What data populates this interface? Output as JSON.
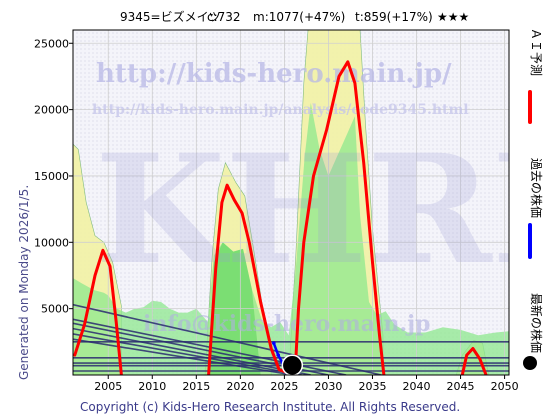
{
  "header": {
    "code_name": "9345=ビズメイツ",
    "current": "c:732",
    "median": "m:1077(+47%)",
    "target": "t:859(+17%)",
    "stars": "★★★"
  },
  "side_note": "Generated on Monday 2026/1/5.",
  "footer": "Copyright (c) Kids-Hero Research Institute. All Rights Reserved.",
  "watermarks": {
    "url": "http://kids-hero.main.jp/",
    "analysis_url": "http://kids-hero.main.jp/analysis/code9345.html",
    "brand": "KHRI",
    "email": "info@kids-hero.main.jp"
  },
  "legend": [
    {
      "label": "ＡＩ予測",
      "color": "#ff0000"
    },
    {
      "label": "過去の株価",
      "color": "#0000ff"
    },
    {
      "label": "最新の株価",
      "color": "#000000"
    }
  ],
  "chart_data": {
    "type": "line",
    "xlim": [
      2001,
      2050.5
    ],
    "ylim": [
      0,
      26000
    ],
    "x_ticks": [
      "2005",
      "2010",
      "2015",
      "2020",
      "2025",
      "2030",
      "2035",
      "2040",
      "2045",
      "2050"
    ],
    "y_ticks": [
      "5000",
      "10000",
      "15000",
      "20000",
      "25000"
    ],
    "grid": true,
    "series": [
      {
        "name": "ＡＩ予測",
        "color": "#ff0000",
        "points": [
          [
            2001.2,
            1500
          ],
          [
            2002.3,
            3800
          ],
          [
            2003.5,
            7500
          ],
          [
            2004.4,
            9400
          ],
          [
            2005.2,
            8200
          ],
          [
            2005.9,
            4000
          ],
          [
            2006.5,
            0
          ],
          [
            2016.4,
            0
          ],
          [
            2017.2,
            8000
          ],
          [
            2017.9,
            13000
          ],
          [
            2018.5,
            14300
          ],
          [
            2019.3,
            13200
          ],
          [
            2020.2,
            12200
          ],
          [
            2021.0,
            10000
          ],
          [
            2022.3,
            5500
          ],
          [
            2023.5,
            2000
          ],
          [
            2024.4,
            400
          ],
          [
            2026.2,
            0
          ],
          [
            2026.6,
            5000
          ],
          [
            2027.2,
            10000
          ],
          [
            2028.3,
            15000
          ],
          [
            2029.8,
            18500
          ],
          [
            2031.2,
            22500
          ],
          [
            2032.2,
            23600
          ],
          [
            2033.0,
            22000
          ],
          [
            2034.0,
            16000
          ],
          [
            2035.0,
            8500
          ],
          [
            2035.8,
            3000
          ],
          [
            2036.3,
            0
          ],
          [
            2045.2,
            0
          ],
          [
            2045.7,
            1500
          ],
          [
            2046.4,
            2000
          ],
          [
            2047.2,
            1200
          ],
          [
            2047.9,
            0
          ]
        ]
      },
      {
        "name": "過去の株価",
        "color": "#0000ff",
        "points": [
          [
            2023.8,
            2400
          ],
          [
            2024.3,
            1500
          ],
          [
            2024.8,
            900
          ],
          [
            2025.1,
            800
          ],
          [
            2025.5,
            732
          ]
        ]
      },
      {
        "name": "最新の株価",
        "color": "#000000",
        "points": [
          [
            2025.9,
            732
          ]
        ]
      }
    ]
  }
}
